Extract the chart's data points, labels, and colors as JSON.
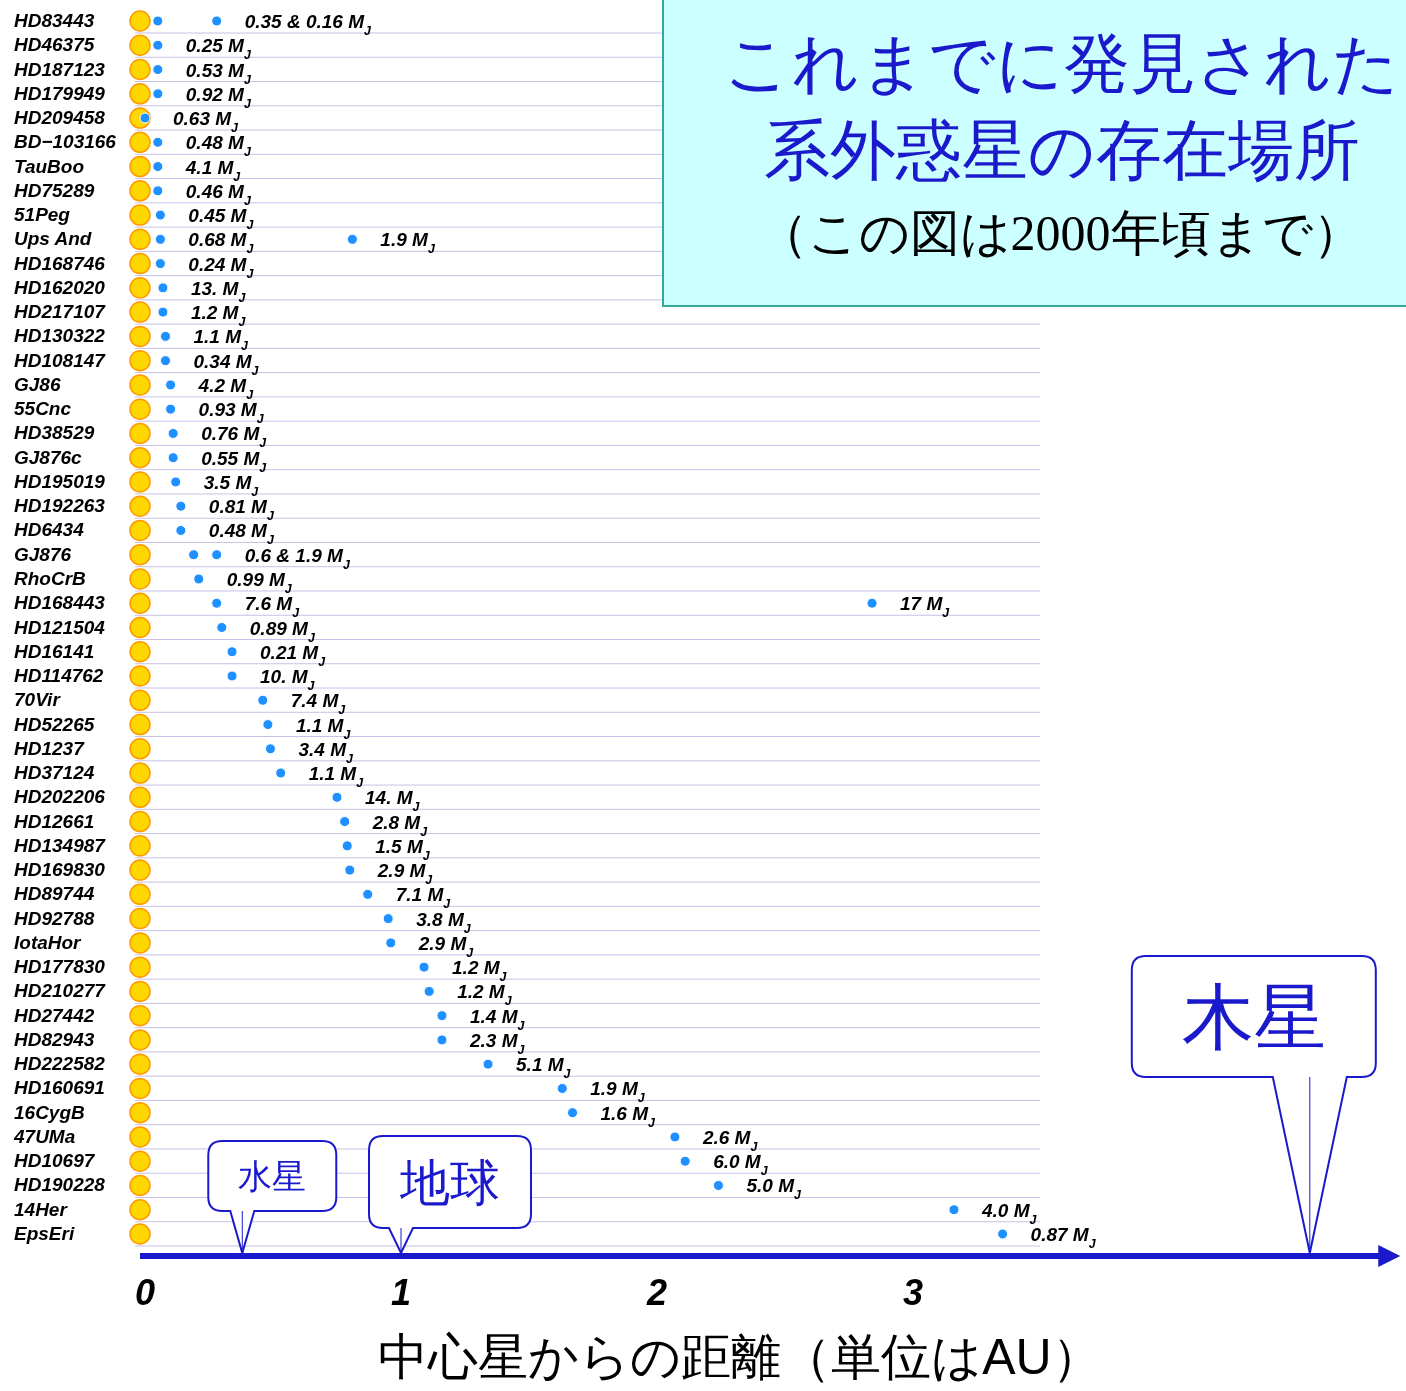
{
  "chart_data": {
    "type": "scatter",
    "orientation": "horizontal",
    "title": "これまでに発見された系外惑星の存在場所",
    "subtitle": "（この図は2000年頃まで）",
    "xlabel": "中心星からの距離（単位はAU）",
    "categories": [
      "HD83443",
      "HD46375",
      "HD187123",
      "HD179949",
      "HD209458",
      "BD−103166",
      "TauBoo",
      "HD75289",
      "51Peg",
      "Ups And",
      "HD168746",
      "HD162020",
      "HD217107",
      "HD130322",
      "HD108147",
      "GJ86",
      "55Cnc",
      "HD38529",
      "GJ876c",
      "HD195019",
      "HD192263",
      "HD6434",
      "GJ876",
      "RhoCrB",
      "HD168443",
      "HD121504",
      "HD16141",
      "HD114762",
      "70Vir",
      "HD52265",
      "HD1237",
      "HD37124",
      "HD202206",
      "HD12661",
      "HD134987",
      "HD169830",
      "HD89744",
      "HD92788",
      "IotaHor",
      "HD177830",
      "HD210277",
      "HD27442",
      "HD82943",
      "HD222582",
      "HD160691",
      "16CygB",
      "47UMa",
      "HD10697",
      "HD190228",
      "14Her",
      "EpsEri"
    ],
    "series": [
      {
        "color": "#ffd700",
        "values": [
          0,
          0,
          0,
          0,
          0,
          0,
          0,
          0,
          0,
          0,
          0,
          0,
          0,
          0,
          0,
          0,
          0,
          0,
          0,
          0,
          0,
          0,
          0,
          0,
          0,
          0,
          0,
          0,
          0,
          0,
          0,
          0,
          0,
          0,
          0,
          0,
          0,
          0,
          0,
          0,
          0,
          0,
          0,
          0,
          0,
          0,
          0,
          0,
          0,
          0,
          0
        ]
      },
      {
        "color": "#1e90ff",
        "values": [
          0.05,
          0.05,
          0.05,
          0.05,
          0.0,
          0.05,
          0.05,
          0.05,
          0.06,
          0.06,
          0.06,
          0.07,
          0.07,
          0.08,
          0.08,
          0.1,
          0.1,
          0.11,
          0.11,
          0.12,
          0.14,
          0.14,
          0.19,
          0.21,
          0.28,
          0.3,
          0.34,
          0.34,
          0.46,
          0.48,
          0.49,
          0.53,
          0.75,
          0.78,
          0.79,
          0.8,
          0.87,
          0.95,
          0.96,
          1.09,
          1.11,
          1.16,
          1.16,
          1.34,
          1.63,
          1.67,
          2.07,
          2.11,
          2.24,
          3.16,
          3.35
        ]
      },
      {
        "color": "#1e90ff",
        "values": [
          0.28,
          null,
          null,
          null,
          null,
          null,
          null,
          null,
          null,
          0.81,
          null,
          null,
          null,
          null,
          null,
          null,
          null,
          null,
          null,
          null,
          null,
          null,
          0.28,
          null,
          2.84,
          null,
          null,
          null,
          null,
          null,
          null,
          null,
          null,
          null,
          null,
          null,
          null,
          null,
          null,
          null,
          null,
          null,
          null,
          null,
          null,
          null,
          null,
          null,
          null,
          null,
          null
        ]
      }
    ],
    "xlim": [
      0,
      4.88
    ],
    "xticks": [
      0,
      1,
      2,
      3
    ],
    "grid": "y",
    "annotations": [
      {
        "text": "0.35  &  0.16 M$_{J}$",
        "x": 0.28,
        "y": "HD83443"
      },
      {
        "text": "0.25 M$_{J}$",
        "x": 0.05,
        "y": "HD46375"
      },
      {
        "text": "0.53 M$_{J}$",
        "x": 0.05,
        "y": "HD187123"
      },
      {
        "text": "0.92 M$_{J}$",
        "x": 0.05,
        "y": "HD179949"
      },
      {
        "text": "0.63 M$_{J}$",
        "x": 0.0,
        "y": "HD209458"
      },
      {
        "text": "0.48 M$_{J}$",
        "x": 0.05,
        "y": "BD−103166"
      },
      {
        "text": "4.1 M$_{J}$",
        "x": 0.05,
        "y": "TauBoo"
      },
      {
        "text": "0.46 M$_{J}$",
        "x": 0.05,
        "y": "HD75289"
      },
      {
        "text": "0.45 M$_{J}$",
        "x": 0.06,
        "y": "51Peg"
      },
      {
        "text": "0.68 M$_{J}$",
        "x": 0.06,
        "y": "Ups And"
      },
      {
        "text": "1.9 M$_{J}$",
        "x": 0.81,
        "y": "Ups And"
      },
      {
        "text": "0.24 M$_{J}$",
        "x": 0.06,
        "y": "HD168746"
      },
      {
        "text": "13. M$_{J}$",
        "x": 0.07,
        "y": "HD162020"
      },
      {
        "text": "1.2 M$_{J}$",
        "x": 0.07,
        "y": "HD217107"
      },
      {
        "text": "1.1 M$_{J}$",
        "x": 0.08,
        "y": "HD130322"
      },
      {
        "text": "0.34 M$_{J}$",
        "x": 0.08,
        "y": "HD108147"
      },
      {
        "text": "4.2 M$_{J}$",
        "x": 0.1,
        "y": "GJ86"
      },
      {
        "text": "0.93 M$_{J}$",
        "x": 0.1,
        "y": "55Cnc"
      },
      {
        "text": "0.76 M$_{J}$",
        "x": 0.11,
        "y": "HD38529"
      },
      {
        "text": "0.55 M$_{J}$",
        "x": 0.11,
        "y": "GJ876c"
      },
      {
        "text": "3.5 M$_{J}$",
        "x": 0.12,
        "y": "HD195019"
      },
      {
        "text": "0.81 M$_{J}$",
        "x": 0.14,
        "y": "HD192263"
      },
      {
        "text": "0.48 M$_{J}$",
        "x": 0.14,
        "y": "HD6434"
      },
      {
        "text": "0.6 & 1.9 M$_{J}$",
        "x": 0.28,
        "y": "GJ876"
      },
      {
        "text": "0.99 M$_{J}$",
        "x": 0.21,
        "y": "RhoCrB"
      },
      {
        "text": "7.6 M$_{J}$",
        "x": 0.28,
        "y": "HD168443"
      },
      {
        "text": "17 M$_{J}$",
        "x": 2.84,
        "y": "HD168443"
      },
      {
        "text": "0.89 M$_{J}$",
        "x": 0.3,
        "y": "HD121504"
      },
      {
        "text": "0.21 M$_{J}$",
        "x": 0.34,
        "y": "HD16141"
      },
      {
        "text": "10. M$_{J}$",
        "x": 0.34,
        "y": "HD114762"
      },
      {
        "text": "7.4 M$_{J}$",
        "x": 0.46,
        "y": "70Vir"
      },
      {
        "text": "1.1 M$_{J}$",
        "x": 0.48,
        "y": "HD52265"
      },
      {
        "text": "3.4 M$_{J}$",
        "x": 0.49,
        "y": "HD1237"
      },
      {
        "text": "1.1 M$_{J}$",
        "x": 0.53,
        "y": "HD37124"
      },
      {
        "text": "14. M$_{J}$",
        "x": 0.75,
        "y": "HD202206"
      },
      {
        "text": "2.8 M$_{J}$",
        "x": 0.78,
        "y": "HD12661"
      },
      {
        "text": "1.5 M$_{J}$",
        "x": 0.79,
        "y": "HD134987"
      },
      {
        "text": "2.9 M$_{J}$",
        "x": 0.8,
        "y": "HD169830"
      },
      {
        "text": "7.1 M$_{J}$",
        "x": 0.87,
        "y": "HD89744"
      },
      {
        "text": "3.8 M$_{J}$",
        "x": 0.95,
        "y": "HD92788"
      },
      {
        "text": "2.9 M$_{J}$",
        "x": 0.96,
        "y": "IotaHor"
      },
      {
        "text": "1.2 M$_{J}$",
        "x": 1.09,
        "y": "HD177830"
      },
      {
        "text": "1.2 M$_{J}$",
        "x": 1.11,
        "y": "HD210277"
      },
      {
        "text": "1.4 M$_{J}$",
        "x": 1.16,
        "y": "HD27442"
      },
      {
        "text": "2.3 M$_{J}$",
        "x": 1.16,
        "y": "HD82943"
      },
      {
        "text": "5.1 M$_{J}$",
        "x": 1.34,
        "y": "HD222582"
      },
      {
        "text": "1.9 M$_{J}$",
        "x": 1.63,
        "y": "HD160691"
      },
      {
        "text": "1.6 M$_{J}$",
        "x": 1.67,
        "y": "16CygB"
      },
      {
        "text": "2.6 M$_{J}$",
        "x": 2.07,
        "y": "47UMa"
      },
      {
        "text": "6.0 M$_{J}$",
        "x": 2.11,
        "y": "HD10697"
      },
      {
        "text": "5.0 M$_{J}$",
        "x": 2.24,
        "y": "HD190228"
      },
      {
        "text": "4.0 M$_{J}$",
        "x": 3.16,
        "y": "14Her"
      },
      {
        "text": "0.87 M$_{J}$",
        "x": 3.35,
        "y": "EpsEri"
      }
    ],
    "ref_lines": [
      {
        "axis": "x",
        "value": 0.38,
        "label": "水星",
        "color": "#1a1acc"
      },
      {
        "axis": "x",
        "value": 1.0,
        "label": "地球",
        "color": "#1a1acc"
      },
      {
        "axis": "x",
        "value": 4.55,
        "label": "木星",
        "color": "#1a1acc"
      }
    ]
  }
}
